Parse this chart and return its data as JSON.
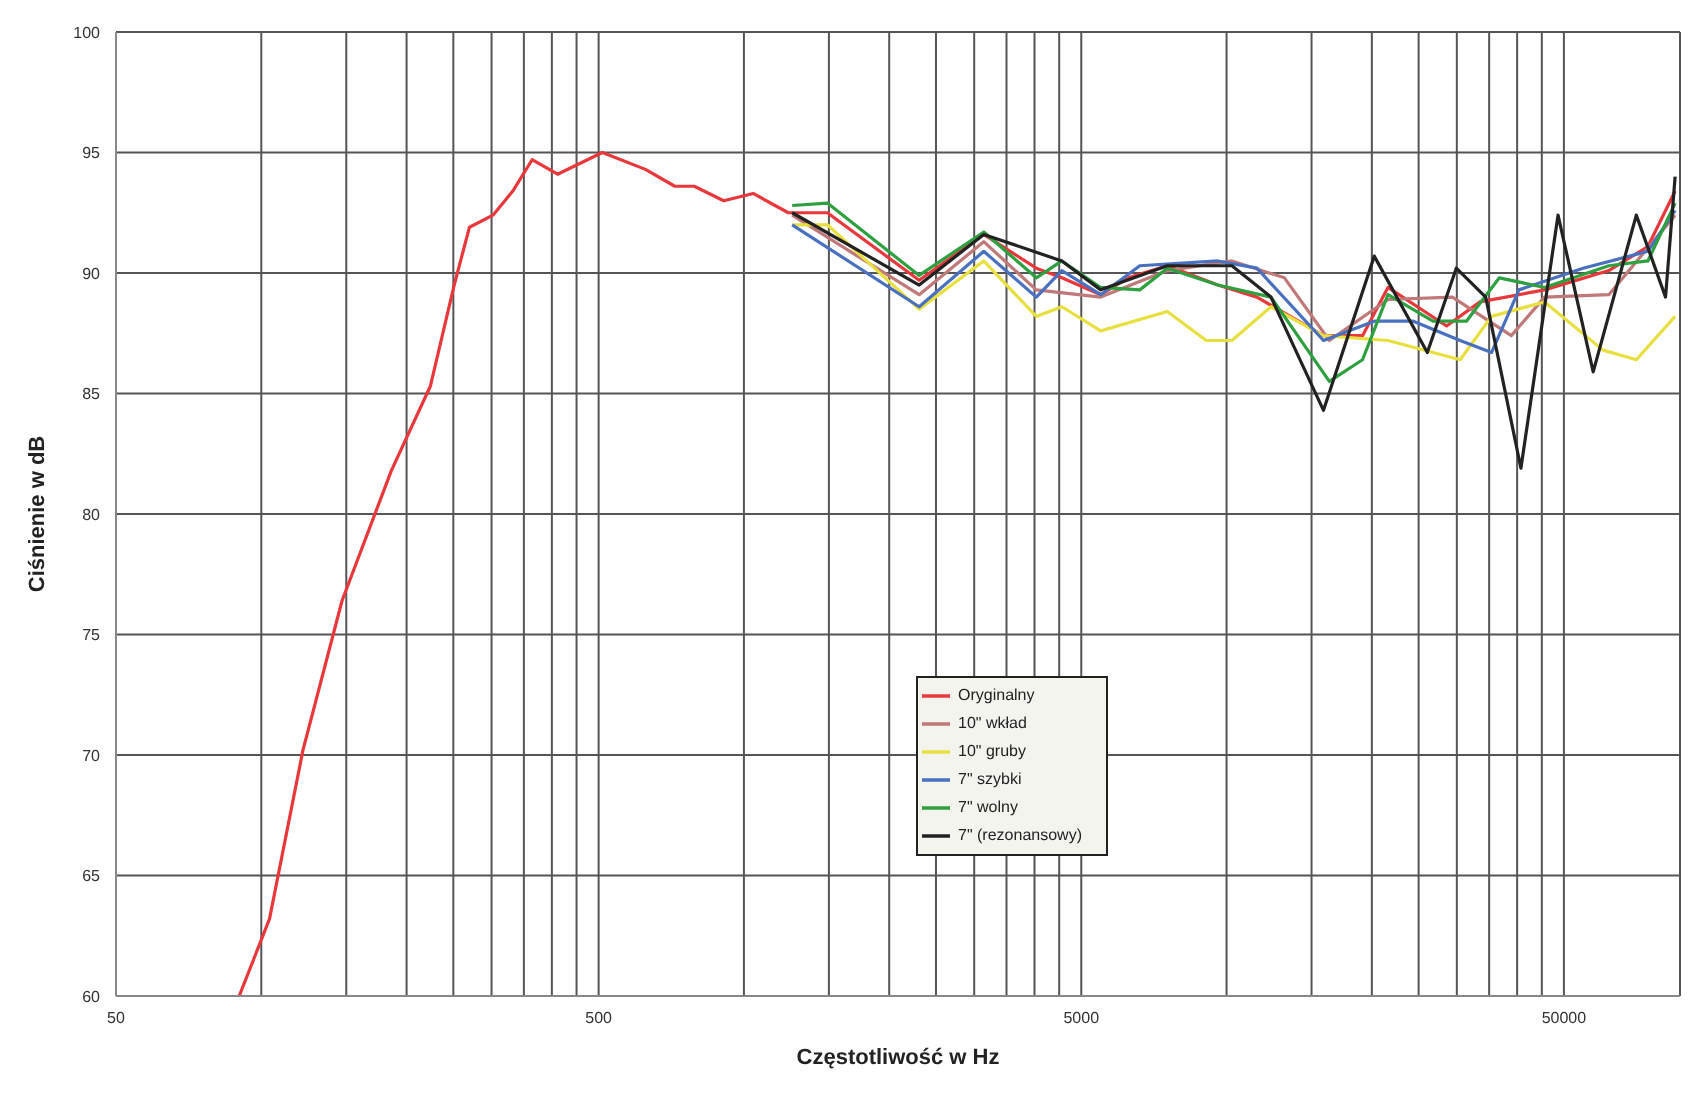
{
  "chart_data": {
    "type": "line",
    "xlabel": "Częstotliwość w Hz",
    "ylabel": "Ciśnienie w dB",
    "log": "x",
    "grid": true,
    "legend": "center",
    "marker": "none",
    "line_style": "solid",
    "xlim": [
      50,
      87000
    ],
    "ylim": [
      60,
      100
    ],
    "xticks": [
      50,
      {
        "value": 100,
        "label": null
      },
      {
        "value": 150,
        "label": null
      },
      {
        "value": 200,
        "label": null
      },
      {
        "value": 250,
        "label": null
      },
      {
        "value": 300,
        "label": null
      },
      {
        "value": 350,
        "label": null
      },
      {
        "value": 400,
        "label": null
      },
      {
        "value": 450,
        "label": null
      },
      500,
      {
        "value": 1000,
        "label": null
      },
      {
        "value": 1500,
        "label": null
      },
      {
        "value": 2000,
        "label": null
      },
      {
        "value": 2500,
        "label": null
      },
      {
        "value": 3000,
        "label": null
      },
      {
        "value": 3500,
        "label": null
      },
      {
        "value": 4000,
        "label": null
      },
      {
        "value": 4500,
        "label": null
      },
      5000,
      {
        "value": 10000,
        "label": null
      },
      {
        "value": 15000,
        "label": null
      },
      {
        "value": 20000,
        "label": null
      },
      {
        "value": 25000,
        "label": null
      },
      {
        "value": 30000,
        "label": null
      },
      {
        "value": 35000,
        "label": null
      },
      {
        "value": 40000,
        "label": null
      },
      {
        "value": 45000,
        "label": null
      },
      50000
    ],
    "yticks": [
      60,
      65,
      70,
      75,
      80,
      85,
      90,
      95,
      100
    ],
    "series": [
      {
        "name": "Oryginalny",
        "color": "#e8383c",
        "x": [
          90,
          104,
          122,
          147,
          186,
          224,
          251,
          270,
          302,
          332,
          364,
          411,
          509,
          625,
          719,
          789,
          908,
          1045,
          1236,
          1489,
          2307,
          3140,
          4035,
          4558,
          5486,
          6250,
          7537,
          9594,
          11560,
          15880,
          19130,
          21600,
          28570,
          33500,
          45600,
          61950,
          74650,
          85000
        ],
        "values": [
          60,
          63.2,
          70.2,
          76.4,
          81.8,
          85.3,
          89.5,
          91.9,
          92.4,
          93.4,
          94.7,
          94.1,
          95,
          94.3,
          93.6,
          93.6,
          93,
          93.3,
          92.5,
          92.5,
          89.7,
          91.6,
          90.2,
          89.8,
          89.1,
          89.8,
          90.3,
          89.5,
          89,
          87.4,
          87.4,
          89.4,
          87.8,
          88.8,
          89.3,
          90.1,
          91.1,
          93.4
        ]
      },
      {
        "name": "10\" wkład",
        "color": "#c07878",
        "x": [
          1259,
          2307,
          3140,
          4035,
          5486,
          7537,
          10260,
          13180,
          16330,
          21600,
          29380,
          38900,
          45600,
          61950,
          85000
        ],
        "values": [
          92.4,
          89.1,
          91.3,
          89.3,
          89,
          90.1,
          90.5,
          89.8,
          87.2,
          88.9,
          89,
          87.4,
          89,
          89.1,
          92.4
        ]
      },
      {
        "name": "10\" gruby",
        "color": "#e8e040",
        "x": [
          1259,
          1489,
          2307,
          3140,
          4035,
          4558,
          5486,
          7537,
          9075,
          10260,
          12360,
          15880,
          21600,
          30480,
          35400,
          45600,
          60250,
          70630,
          85000
        ],
        "values": [
          92,
          92,
          88.5,
          90.5,
          88.2,
          88.6,
          87.6,
          88.4,
          87.2,
          87.2,
          88.6,
          87.4,
          87.2,
          86.4,
          88.2,
          88.8,
          86.8,
          86.4,
          88.2
        ]
      },
      {
        "name": "7\" szybki",
        "color": "#4a70c0",
        "x": [
          1259,
          2307,
          3140,
          4035,
          4558,
          5486,
          6610,
          9594,
          11560,
          15880,
          20230,
          24380,
          30480,
          35400,
          40350,
          54800,
          74650,
          85000
        ],
        "values": [
          92,
          88.6,
          90.9,
          89,
          90.1,
          89.1,
          90.3,
          90.5,
          90.2,
          87.2,
          88,
          88,
          87.2,
          86.7,
          89.3,
          90.2,
          90.9,
          92.6
        ]
      },
      {
        "name": "7\" wolny",
        "color": "#2ea040",
        "x": [
          1259,
          1489,
          2307,
          3140,
          4035,
          4558,
          5486,
          6610,
          7537,
          9594,
          12360,
          16330,
          19130,
          21600,
          26770,
          31400,
          36750,
          45600,
          61950,
          74650,
          85000
        ],
        "values": [
          92.8,
          92.9,
          89.9,
          91.7,
          89.8,
          90.5,
          89.4,
          89.3,
          90.2,
          89.5,
          89,
          85.5,
          86.4,
          89.1,
          88,
          88,
          89.8,
          89.4,
          90.3,
          90.5,
          92.9
        ]
      },
      {
        "name": "7\" (rezonansowy)",
        "color": "#222222",
        "x": [
          1259,
          2307,
          3140,
          4558,
          5486,
          7537,
          10260,
          12360,
          15880,
          20230,
          26060,
          29920,
          34430,
          40730,
          48620,
          57500,
          70630,
          81200,
          85000
        ],
        "values": [
          92.5,
          89.5,
          91.6,
          90.5,
          89.3,
          90.3,
          90.3,
          89,
          84.3,
          90.7,
          86.7,
          90.2,
          89,
          81.9,
          92.4,
          85.9,
          92.4,
          89,
          94
        ]
      }
    ]
  }
}
